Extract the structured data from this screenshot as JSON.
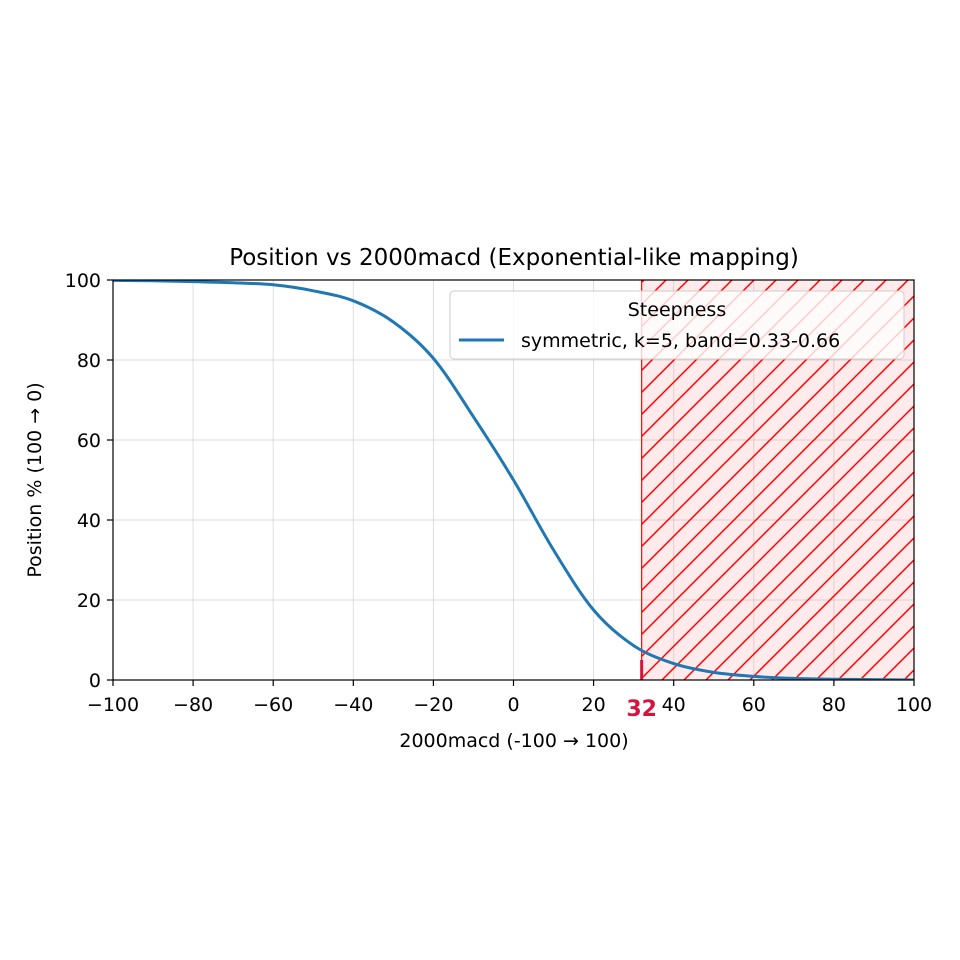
{
  "chart_data": {
    "type": "line",
    "title": "Position vs 2000macd (Exponential-like mapping)",
    "xlabel": "2000macd (-100 → 100)",
    "ylabel": "Position % (100 → 0)",
    "xlim": [
      -100,
      100
    ],
    "ylim": [
      0,
      100
    ],
    "xticks": [
      -100,
      -80,
      -60,
      -40,
      -20,
      0,
      20,
      40,
      60,
      80,
      100
    ],
    "xtick_labels": [
      "−100",
      "−80",
      "−60",
      "−40",
      "−20",
      "0",
      "20",
      "40",
      "60",
      "80",
      "100"
    ],
    "yticks": [
      0,
      20,
      40,
      60,
      80,
      100
    ],
    "ytick_labels": [
      "0",
      "20",
      "40",
      "60",
      "80",
      "100"
    ],
    "grid": true,
    "legend": {
      "title": "Steepness",
      "placement": "top-right",
      "entries": [
        "symmetric, k=5, band=0.33-0.66"
      ]
    },
    "series": [
      {
        "name": "symmetric, k=5, band=0.33-0.66",
        "color": "#1f77b4",
        "x": [
          -100,
          -90,
          -80,
          -70,
          -60,
          -50,
          -40,
          -30,
          -20,
          -10,
          0,
          10,
          20,
          30,
          40,
          50,
          60,
          70,
          80,
          90,
          100
        ],
        "y": [
          99.9,
          99.8,
          99.6,
          99.3,
          98.8,
          97.3,
          94.8,
          89.5,
          80.4,
          65.8,
          50.0,
          32.5,
          17.5,
          8.6,
          4.1,
          1.9,
          0.9,
          0.4,
          0.2,
          0.1,
          0.0
        ]
      }
    ],
    "shaded_region": {
      "x_start": 32,
      "x_end": 100,
      "style": "hatched",
      "color": "#ff0000"
    },
    "marker": {
      "x": 32,
      "label": "32",
      "color": "#d7143c"
    }
  }
}
